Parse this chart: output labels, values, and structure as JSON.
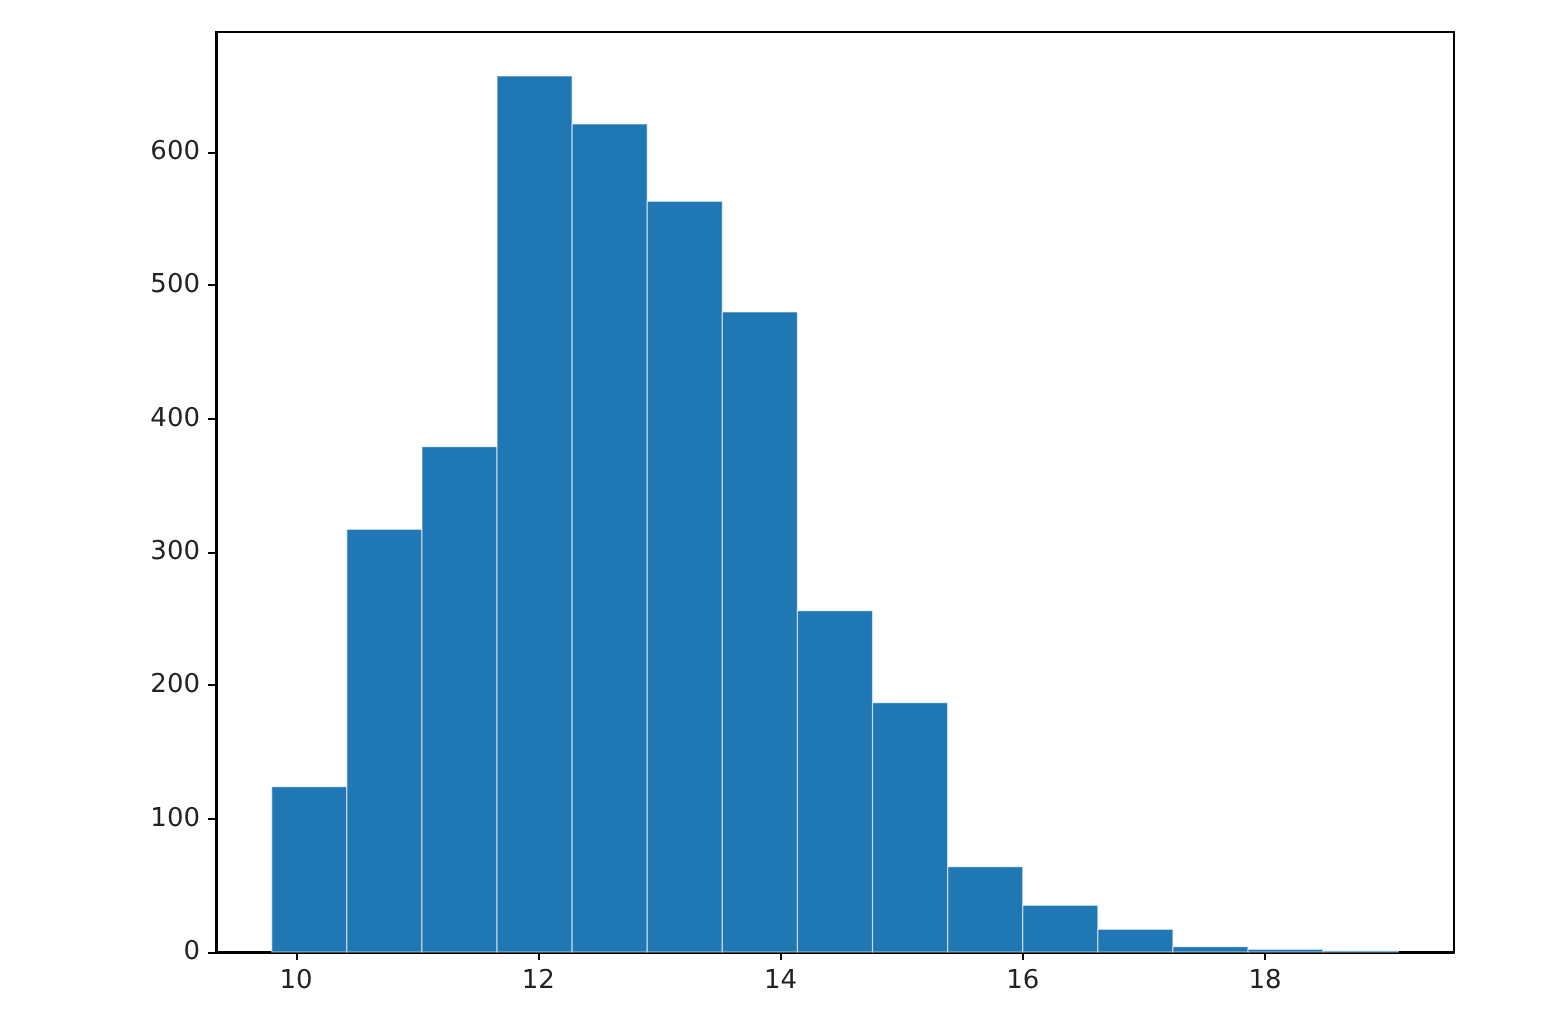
{
  "chart_data": {
    "type": "histogram",
    "bins": [
      9.8,
      10.42,
      11.04,
      11.66,
      12.28,
      12.9,
      13.52,
      14.14,
      14.76,
      15.38,
      16.0,
      16.62,
      17.24,
      17.86,
      18.48,
      19.1
    ],
    "values": [
      124,
      317,
      379,
      657,
      621,
      563,
      480,
      256,
      187,
      64,
      35,
      17,
      4,
      2,
      1
    ],
    "color": "#1f77b4",
    "xlim": [
      9.34,
      19.56
    ],
    "xticks": [
      10,
      12,
      14,
      16,
      18
    ],
    "ylim": [
      0,
      690
    ],
    "yticks": [
      0,
      100,
      200,
      300,
      400,
      500,
      600
    ],
    "grid": false
  }
}
